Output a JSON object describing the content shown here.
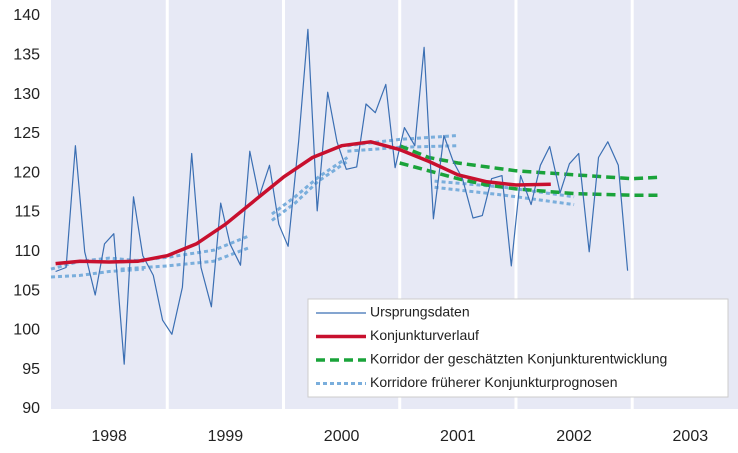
{
  "chart_data": {
    "type": "line",
    "xlim": [
      1998,
      2003.91
    ],
    "ylim": [
      90,
      140
    ],
    "xticks": [
      {
        "value": 1998.5,
        "label": "1998"
      },
      {
        "value": 1999.5,
        "label": "1999"
      },
      {
        "value": 2000.5,
        "label": "2000"
      },
      {
        "value": 2001.5,
        "label": "2001"
      },
      {
        "value": 2002.5,
        "label": "2002"
      },
      {
        "value": 2003.5,
        "label": "2003"
      }
    ],
    "yticks": [
      90,
      95,
      100,
      105,
      110,
      115,
      120,
      125,
      130,
      135,
      140
    ],
    "legend": "lower right",
    "background": "#e7e9f5",
    "series": [
      {
        "name": "Ursprungsdaten",
        "color": "#3b6fb3",
        "style": "solid",
        "width": 1.2,
        "lines": [
          {
            "x": [
              1998.04,
              1998.13,
              1998.21,
              1998.29,
              1998.38,
              1998.46,
              1998.54,
              1998.63,
              1998.71,
              1998.79,
              1998.88,
              1998.96,
              1999.04,
              1999.13,
              1999.21,
              1999.29,
              1999.38,
              1999.46,
              1999.54,
              1999.63,
              1999.71,
              1999.79,
              1999.88,
              1999.96,
              2000.04,
              2000.13,
              2000.21,
              2000.29,
              2000.38,
              2000.46,
              2000.54,
              2000.63,
              2000.71,
              2000.79,
              2000.88,
              2000.96,
              2001.04,
              2001.13,
              2001.21,
              2001.29,
              2001.38,
              2001.46,
              2001.54,
              2001.63,
              2001.71,
              2001.79,
              2001.88,
              2001.96,
              2002.04,
              2002.13,
              2002.21,
              2002.29,
              2002.38,
              2002.46,
              2002.54,
              2002.63,
              2002.71,
              2002.79,
              2002.88,
              2002.96
            ],
            "values": [
              107.5,
              108,
              123.5,
              110,
              104.5,
              111,
              112.3,
              95.7,
              117,
              109.5,
              107,
              101.3,
              99.5,
              105.5,
              122.5,
              108,
              103,
              116.2,
              111,
              108.3,
              122.8,
              117,
              121,
              113.5,
              110.7,
              124,
              138.3,
              115.2,
              130.3,
              124,
              120.5,
              120.8,
              128.8,
              127.7,
              131.3,
              120.7,
              125.8,
              123.5,
              136,
              114.2,
              124.8,
              121.5,
              119.3,
              114.3,
              114.6,
              119.3,
              119.7,
              108.2,
              119.7,
              116,
              121,
              123.4,
              117.5,
              121.2,
              122.5,
              110,
              122,
              124,
              121,
              107.6
            ]
          }
        ]
      },
      {
        "name": "Konjunkturverlauf",
        "color": "#c8102e",
        "style": "solid",
        "width": 3.5,
        "lines": [
          {
            "x": [
              1998.04,
              1998.25,
              1998.5,
              1998.75,
              1999.0,
              1999.25,
              1999.5,
              1999.75,
              2000.0,
              2000.25,
              2000.5,
              2000.75,
              2001.0,
              2001.25,
              2001.5,
              2001.75,
              2002.0,
              2002.3
            ],
            "values": [
              108.5,
              108.8,
              108.7,
              108.8,
              109.5,
              111,
              113.5,
              116.5,
              119.5,
              122,
              123.5,
              124,
              123,
              121.5,
              119.8,
              118.9,
              118.5,
              118.6
            ]
          }
        ]
      },
      {
        "name": "Korridor der geschätzten Konjunkturentwicklung",
        "color": "#1aa33a",
        "style": "dashed",
        "width": 3.5,
        "lines": [
          {
            "x": [
              2001.0,
              2001.25,
              2001.5,
              2001.75,
              2002.0,
              2002.5,
              2003.0,
              2003.25
            ],
            "values": [
              123.5,
              122,
              121.3,
              120.8,
              120.3,
              119.8,
              119.3,
              119.5
            ]
          },
          {
            "x": [
              2001.0,
              2001.25,
              2001.5,
              2001.75,
              2002.0,
              2002.5,
              2003.0,
              2003.25
            ],
            "values": [
              121.3,
              120.3,
              119.3,
              118.5,
              118,
              117.4,
              117.2,
              117.2
            ]
          }
        ]
      },
      {
        "name": "Korridore früherer Konjunkturprognosen",
        "color": "#7aaedc",
        "style": "dotted",
        "width": 3,
        "lines": [
          {
            "x": [
              1998.0,
              1998.25,
              1998.5,
              1998.8
            ],
            "values": [
              107.8,
              108.8,
              109.2,
              108.8
            ]
          },
          {
            "x": [
              1998.0,
              1998.25,
              1998.5,
              1998.8
            ],
            "values": [
              106.8,
              107,
              107.5,
              107.8
            ]
          },
          {
            "x": [
              1998.6,
              1999.0,
              1999.4,
              1999.7
            ],
            "values": [
              108.7,
              109.3,
              110.2,
              112
            ]
          },
          {
            "x": [
              1998.6,
              1999.0,
              1999.4,
              1999.7
            ],
            "values": [
              107.8,
              108.2,
              108.8,
              110.5
            ]
          },
          {
            "x": [
              1999.9,
              2000.1,
              2000.3,
              2000.55
            ],
            "values": [
              114.8,
              117,
              119.5,
              122
            ]
          },
          {
            "x": [
              1999.9,
              2000.1,
              2000.3,
              2000.55
            ],
            "values": [
              114,
              116.2,
              119,
              121.5
            ]
          },
          {
            "x": [
              2000.55,
              2001.0,
              2001.5
            ],
            "values": [
              123.5,
              124.3,
              124.8
            ]
          },
          {
            "x": [
              2000.55,
              2001.0,
              2001.5
            ],
            "values": [
              122.8,
              123.3,
              123.5
            ]
          },
          {
            "x": [
              2001.3,
              2001.9,
              2002.5
            ],
            "values": [
              119,
              118.2,
              117
            ]
          },
          {
            "x": [
              2001.3,
              2001.9,
              2002.5
            ],
            "values": [
              118.2,
              117.2,
              116
            ]
          }
        ]
      }
    ]
  }
}
